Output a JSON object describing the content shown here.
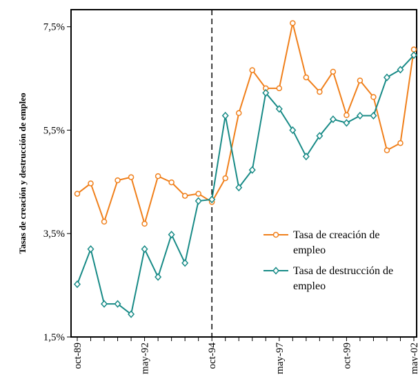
{
  "chart_data": {
    "type": "line",
    "y_axis_label": "Tasas de creación y destrucción de empleo",
    "categories": [
      "oct-89",
      null,
      null,
      null,
      null,
      "may-92",
      null,
      null,
      null,
      null,
      "oct-94",
      null,
      null,
      null,
      null,
      "may-97",
      null,
      null,
      null,
      null,
      "oct-99",
      null,
      null,
      null,
      null,
      "may-02"
    ],
    "series": [
      {
        "name": "Tasa de creación de empleo",
        "color": "#f07f1a",
        "marker": "circle",
        "values": [
          4.27,
          4.47,
          3.73,
          4.53,
          4.59,
          3.69,
          4.61,
          4.49,
          4.23,
          4.27,
          4.11,
          4.57,
          5.83,
          6.66,
          6.31,
          6.31,
          7.57,
          6.52,
          6.24,
          6.63,
          5.79,
          6.46,
          6.14,
          5.11,
          5.25,
          7.06
        ]
      },
      {
        "name": "Tasa de destrucción de empleo",
        "color": "#178a86",
        "marker": "diamond",
        "values": [
          2.52,
          3.2,
          2.14,
          2.14,
          1.94,
          3.2,
          2.66,
          3.48,
          2.93,
          4.13,
          4.16,
          5.78,
          4.39,
          4.73,
          6.22,
          5.91,
          5.5,
          4.99,
          5.39,
          5.71,
          5.64,
          5.78,
          5.78,
          6.52,
          6.67,
          6.95
        ]
      }
    ],
    "ylim": [
      1.5,
      7.83
    ],
    "yticks": [
      {
        "value": 1.5,
        "label": "1,5%"
      },
      {
        "value": 3.5,
        "label": "3,5%"
      },
      {
        "value": 5.5,
        "label": "5,5%"
      },
      {
        "value": 7.5,
        "label": "7,5%"
      }
    ],
    "vline_category": "oct-94",
    "grid": false
  }
}
